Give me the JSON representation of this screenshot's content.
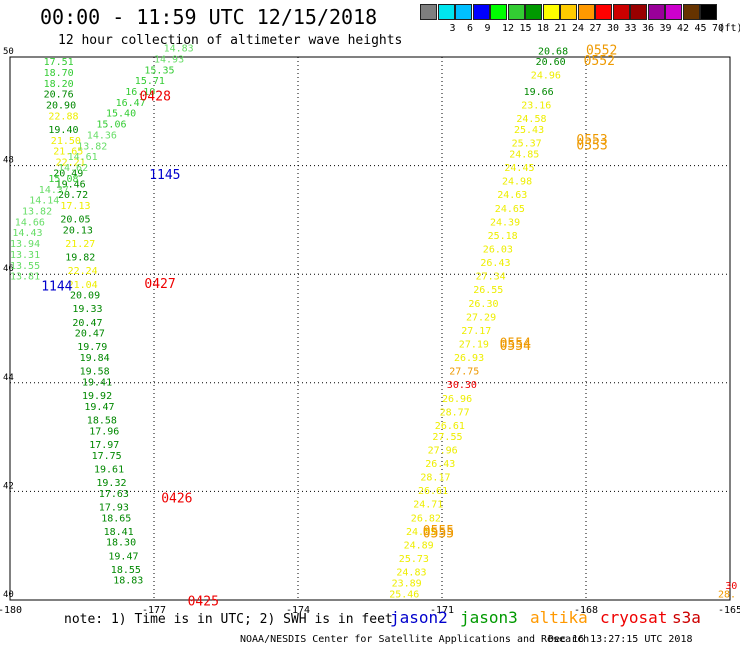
{
  "header": {
    "title": "00:00 - 11:59 UTC 12/15/2018",
    "subtitle": "12 hour collection of altimeter wave heights"
  },
  "legend": {
    "unit": "(ft)",
    "bins": [
      {
        "label": "",
        "color": "#7f7f7f"
      },
      {
        "label": "3",
        "color": "#00e5ee"
      },
      {
        "label": "6",
        "color": "#00bfff"
      },
      {
        "label": "9",
        "color": "#0000ff"
      },
      {
        "label": "12",
        "color": "#00ff00"
      },
      {
        "label": "15",
        "color": "#33cc33"
      },
      {
        "label": "18",
        "color": "#009900"
      },
      {
        "label": "21",
        "color": "#ffff00"
      },
      {
        "label": "24",
        "color": "#ffcc00"
      },
      {
        "label": "27",
        "color": "#ff9900"
      },
      {
        "label": "30",
        "color": "#ff0000"
      },
      {
        "label": "33",
        "color": "#cc0000"
      },
      {
        "label": "36",
        "color": "#990000"
      },
      {
        "label": "39",
        "color": "#990099"
      },
      {
        "label": "42",
        "color": "#cc00cc"
      },
      {
        "label": "45",
        "color": "#663300"
      },
      {
        "label": "70",
        "color": "#000000"
      }
    ]
  },
  "axes": {
    "x_ticks": [
      "-180",
      "-177",
      "-174",
      "-171",
      "-168",
      "-165"
    ],
    "y_ticks": [
      "40",
      "42",
      "44",
      "46",
      "48",
      "50"
    ]
  },
  "colors": {
    "dark_green": "#008800",
    "green": "#33cc33",
    "light_green": "#66dd66",
    "yellow": "#eeee00",
    "orange": "#ee9900",
    "red": "#ee0000",
    "blue": "#0000cc"
  },
  "track_a": [
    {
      "lon": -179.3,
      "lat": 49.85,
      "v": "17.51",
      "c": "green"
    },
    {
      "lon": -179.3,
      "lat": 49.65,
      "v": "18.70",
      "c": "green"
    },
    {
      "lon": -179.3,
      "lat": 49.45,
      "v": "18.20",
      "c": "green"
    },
    {
      "lon": -179.3,
      "lat": 49.25,
      "v": "20.76",
      "c": "dark_green"
    },
    {
      "lon": -179.25,
      "lat": 49.05,
      "v": "20.90",
      "c": "dark_green"
    },
    {
      "lon": -179.2,
      "lat": 48.85,
      "v": "22.88",
      "c": "yellow"
    },
    {
      "lon": -179.2,
      "lat": 48.6,
      "v": "19.40",
      "c": "dark_green"
    },
    {
      "lon": -179.15,
      "lat": 48.4,
      "v": "21.50",
      "c": "yellow"
    },
    {
      "lon": -179.1,
      "lat": 48.2,
      "v": "21.65",
      "c": "yellow"
    },
    {
      "lon": -179.05,
      "lat": 48.0,
      "v": "22.21",
      "c": "yellow"
    },
    {
      "lon": -179.1,
      "lat": 47.8,
      "v": "20.49",
      "c": "dark_green"
    },
    {
      "lon": -179.05,
      "lat": 47.6,
      "v": "19.46",
      "c": "dark_green"
    },
    {
      "lon": -179.0,
      "lat": 47.4,
      "v": "20.72",
      "c": "dark_green"
    },
    {
      "lon": -178.95,
      "lat": 47.2,
      "v": "17.13",
      "c": "yellow"
    },
    {
      "lon": -178.95,
      "lat": 46.95,
      "v": "20.05",
      "c": "dark_green"
    },
    {
      "lon": -178.9,
      "lat": 46.75,
      "v": "20.13",
      "c": "dark_green"
    },
    {
      "lon": -178.85,
      "lat": 46.5,
      "v": "21.27",
      "c": "yellow"
    },
    {
      "lon": -178.85,
      "lat": 46.25,
      "v": "19.82",
      "c": "dark_green"
    },
    {
      "lon": -178.8,
      "lat": 46.0,
      "v": "22.24",
      "c": "yellow"
    },
    {
      "lon": -178.8,
      "lat": 45.75,
      "v": "21.04",
      "c": "yellow"
    },
    {
      "lon": -178.75,
      "lat": 45.55,
      "v": "20.09",
      "c": "dark_green"
    },
    {
      "lon": -178.7,
      "lat": 45.3,
      "v": "19.33",
      "c": "dark_green"
    },
    {
      "lon": -178.7,
      "lat": 45.05,
      "v": "20.47",
      "c": "dark_green"
    },
    {
      "lon": -178.65,
      "lat": 44.85,
      "v": "20.47",
      "c": "dark_green"
    },
    {
      "lon": -178.6,
      "lat": 44.6,
      "v": "19.79",
      "c": "dark_green"
    },
    {
      "lon": -178.55,
      "lat": 44.4,
      "v": "19.84",
      "c": "dark_green"
    },
    {
      "lon": -178.55,
      "lat": 44.15,
      "v": "19.58",
      "c": "dark_green"
    },
    {
      "lon": -178.5,
      "lat": 43.95,
      "v": "19.41",
      "c": "dark_green"
    },
    {
      "lon": -178.5,
      "lat": 43.7,
      "v": "19.92",
      "c": "dark_green"
    },
    {
      "lon": -178.45,
      "lat": 43.5,
      "v": "19.47",
      "c": "dark_green"
    },
    {
      "lon": -178.4,
      "lat": 43.25,
      "v": "18.58",
      "c": "dark_green"
    },
    {
      "lon": -178.35,
      "lat": 43.05,
      "v": "17.96",
      "c": "dark_green"
    },
    {
      "lon": -178.35,
      "lat": 42.8,
      "v": "17.97",
      "c": "dark_green"
    },
    {
      "lon": -178.3,
      "lat": 42.6,
      "v": "17.75",
      "c": "dark_green"
    },
    {
      "lon": -178.25,
      "lat": 42.35,
      "v": "19.61",
      "c": "dark_green"
    },
    {
      "lon": -178.2,
      "lat": 42.1,
      "v": "19.32",
      "c": "dark_green"
    },
    {
      "lon": -178.15,
      "lat": 41.9,
      "v": "17.63",
      "c": "dark_green"
    },
    {
      "lon": -178.15,
      "lat": 41.65,
      "v": "17.93",
      "c": "dark_green"
    },
    {
      "lon": -178.1,
      "lat": 41.45,
      "v": "18.65",
      "c": "dark_green"
    },
    {
      "lon": -178.05,
      "lat": 41.2,
      "v": "18.41",
      "c": "dark_green"
    },
    {
      "lon": -178.0,
      "lat": 41.0,
      "v": "18.30",
      "c": "dark_green"
    },
    {
      "lon": -177.95,
      "lat": 40.75,
      "v": "19.47",
      "c": "dark_green"
    },
    {
      "lon": -177.9,
      "lat": 40.5,
      "v": "18.55",
      "c": "dark_green"
    },
    {
      "lon": -177.85,
      "lat": 40.3,
      "v": "18.83",
      "c": "dark_green"
    }
  ],
  "track_b": [
    {
      "lon": -176.8,
      "lat": 50.1,
      "v": "14.83",
      "c": "light_green"
    },
    {
      "lon": -177.0,
      "lat": 49.9,
      "v": "14.93",
      "c": "light_green"
    },
    {
      "lon": -177.2,
      "lat": 49.7,
      "v": "15.35",
      "c": "green"
    },
    {
      "lon": -177.4,
      "lat": 49.5,
      "v": "15.71",
      "c": "green"
    },
    {
      "lon": -177.6,
      "lat": 49.3,
      "v": "16.10",
      "c": "green"
    },
    {
      "lon": -177.8,
      "lat": 49.1,
      "v": "16.47",
      "c": "green"
    },
    {
      "lon": -178.0,
      "lat": 48.9,
      "v": "15.40",
      "c": "green"
    },
    {
      "lon": -178.2,
      "lat": 48.7,
      "v": "15.06",
      "c": "green"
    },
    {
      "lon": -178.4,
      "lat": 48.5,
      "v": "14.36",
      "c": "light_green"
    },
    {
      "lon": -178.6,
      "lat": 48.3,
      "v": "13.82",
      "c": "light_green"
    },
    {
      "lon": -178.8,
      "lat": 48.1,
      "v": "14.61",
      "c": "light_green"
    },
    {
      "lon": -179.0,
      "lat": 47.9,
      "v": "14.62",
      "c": "light_green"
    },
    {
      "lon": -179.2,
      "lat": 47.7,
      "v": "15.08",
      "c": "green"
    },
    {
      "lon": -179.4,
      "lat": 47.5,
      "v": "14.37",
      "c": "light_green"
    },
    {
      "lon": -179.6,
      "lat": 47.3,
      "v": "14.14",
      "c": "light_green"
    },
    {
      "lon": -179.75,
      "lat": 47.1,
      "v": "13.82",
      "c": "light_green"
    },
    {
      "lon": -179.9,
      "lat": 46.9,
      "v": "14.66",
      "c": "light_green"
    },
    {
      "lon": -179.95,
      "lat": 46.7,
      "v": "14.43",
      "c": "light_green"
    },
    {
      "lon": -180.0,
      "lat": 46.5,
      "v": "13.94",
      "c": "light_green"
    },
    {
      "lon": -180.0,
      "lat": 46.3,
      "v": "13.31",
      "c": "light_green"
    },
    {
      "lon": -180.0,
      "lat": 46.1,
      "v": "13.55",
      "c": "light_green"
    },
    {
      "lon": -180.0,
      "lat": 45.9,
      "v": "13.81",
      "c": "light_green"
    }
  ],
  "track_c": [
    {
      "lon": -169.0,
      "lat": 50.05,
      "v": "20.68",
      "c": "dark_green"
    },
    {
      "lon": -169.05,
      "lat": 49.85,
      "v": "20.60",
      "c": "dark_green"
    },
    {
      "lon": -169.15,
      "lat": 49.6,
      "v": "24.96",
      "c": "yellow"
    },
    {
      "lon": -169.3,
      "lat": 49.3,
      "v": "19.66",
      "c": "dark_green"
    },
    {
      "lon": -169.35,
      "lat": 49.05,
      "v": "23.16",
      "c": "yellow"
    },
    {
      "lon": -169.45,
      "lat": 48.8,
      "v": "24.58",
      "c": "yellow"
    },
    {
      "lon": -169.5,
      "lat": 48.6,
      "v": "25.43",
      "c": "yellow"
    },
    {
      "lon": -169.55,
      "lat": 48.35,
      "v": "25.37",
      "c": "yellow"
    },
    {
      "lon": -169.6,
      "lat": 48.15,
      "v": "24.85",
      "c": "yellow"
    },
    {
      "lon": -169.7,
      "lat": 47.9,
      "v": "24.45",
      "c": "yellow"
    },
    {
      "lon": -169.75,
      "lat": 47.65,
      "v": "24.98",
      "c": "yellow"
    },
    {
      "lon": -169.85,
      "lat": 47.4,
      "v": "24.63",
      "c": "yellow"
    },
    {
      "lon": -169.9,
      "lat": 47.15,
      "v": "24.65",
      "c": "yellow"
    },
    {
      "lon": -170.0,
      "lat": 46.9,
      "v": "24.39",
      "c": "yellow"
    },
    {
      "lon": -170.05,
      "lat": 46.65,
      "v": "25.18",
      "c": "yellow"
    },
    {
      "lon": -170.15,
      "lat": 46.4,
      "v": "26.03",
      "c": "yellow"
    },
    {
      "lon": -170.2,
      "lat": 46.15,
      "v": "26.43",
      "c": "yellow"
    },
    {
      "lon": -170.3,
      "lat": 45.9,
      "v": "27.34",
      "c": "yellow"
    },
    {
      "lon": -170.35,
      "lat": 45.65,
      "v": "26.55",
      "c": "yellow"
    },
    {
      "lon": -170.45,
      "lat": 45.4,
      "v": "26.30",
      "c": "yellow"
    },
    {
      "lon": -170.5,
      "lat": 45.15,
      "v": "27.29",
      "c": "yellow"
    },
    {
      "lon": -170.6,
      "lat": 44.9,
      "v": "27.17",
      "c": "yellow"
    },
    {
      "lon": -170.65,
      "lat": 44.65,
      "v": "27.19",
      "c": "yellow"
    },
    {
      "lon": -170.75,
      "lat": 44.4,
      "v": "26.93",
      "c": "yellow"
    },
    {
      "lon": -170.85,
      "lat": 44.15,
      "v": "27.75",
      "c": "orange"
    },
    {
      "lon": -170.9,
      "lat": 43.9,
      "v": "30.30",
      "c": "red"
    },
    {
      "lon": -171.0,
      "lat": 43.65,
      "v": "26.96",
      "c": "yellow"
    },
    {
      "lon": -171.05,
      "lat": 43.4,
      "v": "28.77",
      "c": "yellow"
    },
    {
      "lon": -171.15,
      "lat": 43.15,
      "v": "26.61",
      "c": "yellow"
    },
    {
      "lon": -171.2,
      "lat": 42.95,
      "v": "27.55",
      "c": "yellow"
    },
    {
      "lon": -171.3,
      "lat": 42.7,
      "v": "27.96",
      "c": "yellow"
    },
    {
      "lon": -171.35,
      "lat": 42.45,
      "v": "26.43",
      "c": "yellow"
    },
    {
      "lon": -171.45,
      "lat": 42.2,
      "v": "28.17",
      "c": "yellow"
    },
    {
      "lon": -171.5,
      "lat": 41.95,
      "v": "26.61",
      "c": "yellow"
    },
    {
      "lon": -171.6,
      "lat": 41.7,
      "v": "24.71",
      "c": "yellow"
    },
    {
      "lon": -171.65,
      "lat": 41.45,
      "v": "26.82",
      "c": "yellow"
    },
    {
      "lon": -171.75,
      "lat": 41.2,
      "v": "24.55",
      "c": "yellow"
    },
    {
      "lon": -171.8,
      "lat": 40.95,
      "v": "24.89",
      "c": "yellow"
    },
    {
      "lon": -171.9,
      "lat": 40.7,
      "v": "25.73",
      "c": "yellow"
    },
    {
      "lon": -171.95,
      "lat": 40.45,
      "v": "24.83",
      "c": "yellow"
    },
    {
      "lon": -172.05,
      "lat": 40.25,
      "v": "23.89",
      "c": "yellow"
    },
    {
      "lon": -172.1,
      "lat": 40.05,
      "v": "25.46",
      "c": "yellow"
    }
  ],
  "time_labels": [
    {
      "lon": -177.3,
      "lat": 49.2,
      "v": "0428",
      "c": "red"
    },
    {
      "lon": -177.1,
      "lat": 47.75,
      "v": "1145",
      "c": "blue"
    },
    {
      "lon": -177.2,
      "lat": 45.75,
      "v": "0427",
      "c": "red"
    },
    {
      "lon": -179.35,
      "lat": 45.7,
      "v": "1144",
      "c": "blue"
    },
    {
      "lon": -176.85,
      "lat": 41.8,
      "v": "0426",
      "c": "red"
    },
    {
      "lon": -176.3,
      "lat": 39.9,
      "v": "0425",
      "c": "red"
    },
    {
      "lon": -168.0,
      "lat": 50.05,
      "v": "0552",
      "c": "orange"
    },
    {
      "lon": -168.05,
      "lat": 49.85,
      "v": "0552",
      "c": "orange"
    },
    {
      "lon": -168.2,
      "lat": 48.4,
      "v": "0553",
      "c": "orange"
    },
    {
      "lon": -168.2,
      "lat": 48.3,
      "v": "0553",
      "c": "orange"
    },
    {
      "lon": -169.8,
      "lat": 44.65,
      "v": "0554",
      "c": "orange"
    },
    {
      "lon": -169.8,
      "lat": 44.6,
      "v": "0554",
      "c": "orange"
    },
    {
      "lon": -171.4,
      "lat": 41.2,
      "v": "0555",
      "c": "orange"
    },
    {
      "lon": -171.4,
      "lat": 41.15,
      "v": "0555",
      "c": "orange"
    }
  ],
  "edge_labels": [
    {
      "lon": -165.1,
      "lat": 40.2,
      "v": "30",
      "c": "red"
    },
    {
      "lon": -165.25,
      "lat": 40.05,
      "v": "28.",
      "c": "orange"
    }
  ],
  "footer": {
    "note": "note: 1) Time is in UTC; 2) SWH is in feet",
    "satellites": [
      {
        "name": "jason2",
        "color": "#0000cc"
      },
      {
        "name": "jason3",
        "color": "#009900"
      },
      {
        "name": "altika",
        "color": "#ff9900"
      },
      {
        "name": "cryosat",
        "color": "#ee0000"
      },
      {
        "name": "s3a",
        "color": "#cc0000"
      }
    ],
    "credit": "NOAA/NESDIS Center for Satellite Applications and Research",
    "stamp": "Dec 16 13:27:15 UTC 2018"
  }
}
